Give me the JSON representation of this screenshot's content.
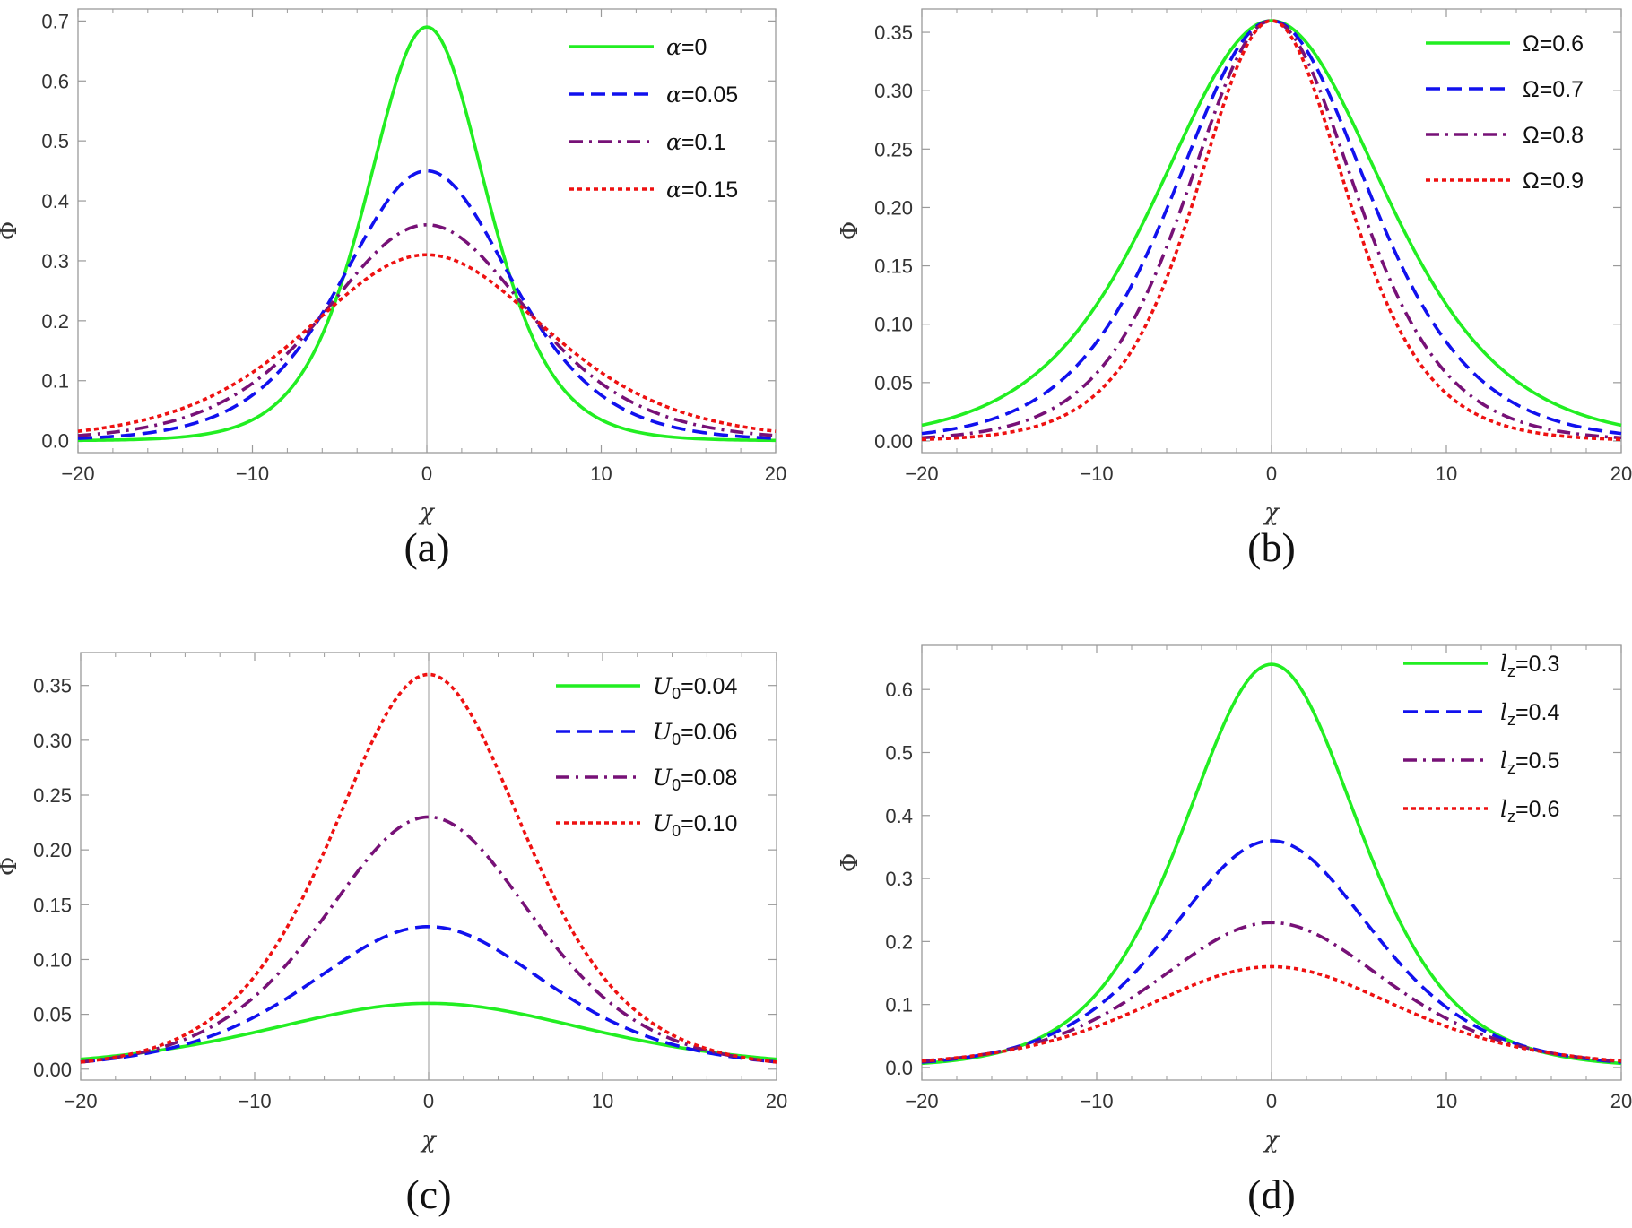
{
  "colors": {
    "green": "#22ee22",
    "blue": "#1111ee",
    "purple": "#771177",
    "red": "#ee1111",
    "frame": "#9a9a9a",
    "zero_line": "#aaaaaa"
  },
  "chart_data": [
    {
      "type": "line",
      "caption": "(a)",
      "xlabel": "χ",
      "ylabel": "Φ",
      "xlim": [
        -20,
        20
      ],
      "ylim": [
        -0.02,
        0.72
      ],
      "xticks": [
        -20,
        -10,
        0,
        10,
        20
      ],
      "xtick_labels": [
        "−20",
        "−10",
        "0",
        "10",
        "20"
      ],
      "yticks": [
        0.0,
        0.1,
        0.2,
        0.3,
        0.4,
        0.5,
        0.6,
        0.7
      ],
      "ytick_labels": [
        "0.0",
        "0.1",
        "0.2",
        "0.3",
        "0.4",
        "0.5",
        "0.6",
        "0.7"
      ],
      "legend_position": "top-right",
      "grid": false,
      "series": [
        {
          "symbol": "α",
          "sub": "",
          "value": "=0",
          "style": "solid",
          "color": "#22ee22",
          "amplitude": 0.69,
          "width": 4.6
        },
        {
          "symbol": "α",
          "sub": "",
          "value": "=0.05",
          "style": "dashed",
          "color": "#1111ee",
          "amplitude": 0.45,
          "width": 6.5
        },
        {
          "symbol": "α",
          "sub": "",
          "value": "=0.1",
          "style": "dashdot",
          "color": "#771177",
          "amplitude": 0.36,
          "width": 7.8
        },
        {
          "symbol": "α",
          "sub": "",
          "value": "=0.15",
          "style": "dotted",
          "color": "#ee1111",
          "amplitude": 0.31,
          "width": 9.2
        }
      ]
    },
    {
      "type": "line",
      "caption": "(b)",
      "xlabel": "χ",
      "ylabel": "Φ",
      "xlim": [
        -20,
        20
      ],
      "ylim": [
        -0.01,
        0.37
      ],
      "xticks": [
        -20,
        -10,
        0,
        10,
        20
      ],
      "xtick_labels": [
        "−20",
        "−10",
        "0",
        "10",
        "20"
      ],
      "yticks": [
        0.0,
        0.05,
        0.1,
        0.15,
        0.2,
        0.25,
        0.3,
        0.35
      ],
      "ytick_labels": [
        "0.00",
        "0.05",
        "0.10",
        "0.15",
        "0.20",
        "0.25",
        "0.30",
        "0.35"
      ],
      "legend_position": "top-right",
      "grid": false,
      "series": [
        {
          "symbol": "Ω",
          "sub": "",
          "value": "=0.6",
          "style": "solid",
          "color": "#22ee22",
          "amplitude": 0.36,
          "width": 8.6
        },
        {
          "symbol": "Ω",
          "sub": "",
          "value": "=0.7",
          "style": "dashed",
          "color": "#1111ee",
          "amplitude": 0.36,
          "width": 7.4
        },
        {
          "symbol": "Ω",
          "sub": "",
          "value": "=0.8",
          "style": "dashdot",
          "color": "#771177",
          "amplitude": 0.36,
          "width": 6.4
        },
        {
          "symbol": "Ω",
          "sub": "",
          "value": "=0.9",
          "style": "dotted",
          "color": "#ee1111",
          "amplitude": 0.36,
          "width": 5.7
        }
      ]
    },
    {
      "type": "line",
      "caption": "(c)",
      "xlabel": "χ",
      "ylabel": "Φ",
      "xlim": [
        -20,
        20
      ],
      "ylim": [
        -0.01,
        0.38
      ],
      "xticks": [
        -20,
        -10,
        0,
        10,
        20
      ],
      "xtick_labels": [
        "−20",
        "−10",
        "0",
        "10",
        "20"
      ],
      "yticks": [
        0.0,
        0.05,
        0.1,
        0.15,
        0.2,
        0.25,
        0.3,
        0.35
      ],
      "ytick_labels": [
        "0.00",
        "0.05",
        "0.10",
        "0.15",
        "0.20",
        "0.25",
        "0.30",
        "0.35"
      ],
      "legend_position": "top-right",
      "grid": false,
      "series": [
        {
          "symbol": "U",
          "sub": "0",
          "value": "=0.04",
          "style": "solid",
          "color": "#22ee22",
          "amplitude": 0.06,
          "width": 12.5
        },
        {
          "symbol": "U",
          "sub": "0",
          "value": "=0.06",
          "style": "dashed",
          "color": "#1111ee",
          "amplitude": 0.13,
          "width": 9.2
        },
        {
          "symbol": "U",
          "sub": "0",
          "value": "=0.08",
          "style": "dashdot",
          "color": "#771177",
          "amplitude": 0.23,
          "width": 8.1
        },
        {
          "symbol": "U",
          "sub": "0",
          "value": "=0.10",
          "style": "dotted",
          "color": "#ee1111",
          "amplitude": 0.36,
          "width": 7.4
        }
      ]
    },
    {
      "type": "line",
      "caption": "(d)",
      "xlabel": "χ",
      "ylabel": "Φ",
      "xlim": [
        -20,
        20
      ],
      "ylim": [
        -0.02,
        0.67
      ],
      "xticks": [
        -20,
        -10,
        0,
        10,
        20
      ],
      "xtick_labels": [
        "−20",
        "−10",
        "0",
        "10",
        "20"
      ],
      "yticks": [
        0.0,
        0.1,
        0.2,
        0.3,
        0.4,
        0.5,
        0.6
      ],
      "ytick_labels": [
        "0.0",
        "0.1",
        "0.2",
        "0.3",
        "0.4",
        "0.5",
        "0.6"
      ],
      "legend_position": "top-right",
      "grid": false,
      "series": [
        {
          "symbol": "l",
          "sub": "z",
          "value": "=0.3",
          "style": "solid",
          "color": "#22ee22",
          "amplitude": 0.64,
          "width": 6.7
        },
        {
          "symbol": "l",
          "sub": "z",
          "value": "=0.4",
          "style": "dashed",
          "color": "#1111ee",
          "amplitude": 0.36,
          "width": 7.8
        },
        {
          "symbol": "l",
          "sub": "z",
          "value": "=0.5",
          "style": "dashdot",
          "color": "#771177",
          "amplitude": 0.23,
          "width": 8.8
        },
        {
          "symbol": "l",
          "sub": "z",
          "value": "=0.6",
          "style": "dotted",
          "color": "#ee1111",
          "amplitude": 0.16,
          "width": 9.8
        }
      ]
    }
  ]
}
